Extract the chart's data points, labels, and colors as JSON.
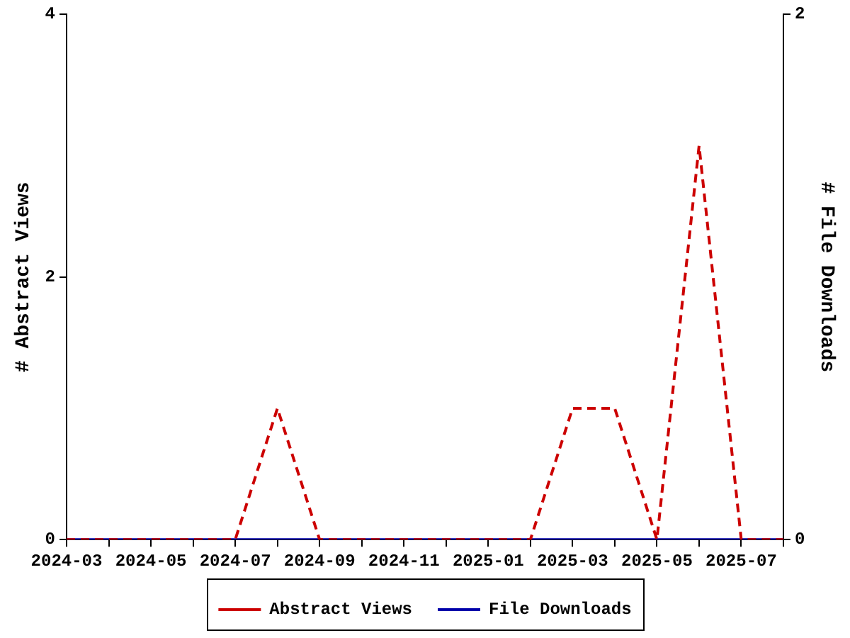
{
  "chart_data": {
    "type": "line",
    "ylabel": "# Abstract Views",
    "y2label": "# File Downloads",
    "x": [
      "2024-03",
      "2024-04",
      "2024-05",
      "2024-06",
      "2024-07",
      "2024-08",
      "2024-09",
      "2024-10",
      "2024-11",
      "2024-12",
      "2025-01",
      "2025-02",
      "2025-03",
      "2025-04",
      "2025-05",
      "2025-06",
      "2025-07",
      "2025-08"
    ],
    "series": [
      {
        "name": "Abstract Views",
        "color": "#cc0000",
        "line_style": "dashed",
        "values": [
          0,
          0,
          0,
          0,
          0,
          1,
          0,
          0,
          0,
          0,
          0,
          0,
          1,
          1,
          0,
          3,
          0,
          0
        ]
      },
      {
        "name": "File Downloads",
        "color": "#0000aa",
        "line_style": "solid",
        "axis": "y2",
        "values": [
          0,
          0,
          0,
          0,
          0,
          0,
          0,
          0,
          0,
          0,
          0,
          0,
          0,
          0,
          0,
          0,
          0,
          0
        ]
      }
    ],
    "xlim": [
      "2024-03",
      "2025-08"
    ],
    "xticks": [
      "2024-03",
      {
        "value": "2024-04",
        "label": null
      },
      "2024-05",
      {
        "value": "2024-06",
        "label": null
      },
      "2024-07",
      {
        "value": "2024-08",
        "label": null
      },
      "2024-09",
      {
        "value": "2024-10",
        "label": null
      },
      "2024-11",
      {
        "value": "2024-12",
        "label": null
      },
      "2025-01",
      {
        "value": "2025-02",
        "label": null
      },
      "2025-03",
      {
        "value": "2025-04",
        "label": null
      },
      "2025-05",
      {
        "value": "2025-06",
        "label": null
      },
      "2025-07",
      {
        "value": "2025-08",
        "label": null
      }
    ],
    "ylim": [
      0,
      4
    ],
    "yticks": [
      0,
      2,
      4
    ],
    "y2lim": [
      0,
      2
    ],
    "y2ticks": [
      0,
      2
    ],
    "grid": false,
    "legend": "bottom",
    "marker": "none"
  }
}
